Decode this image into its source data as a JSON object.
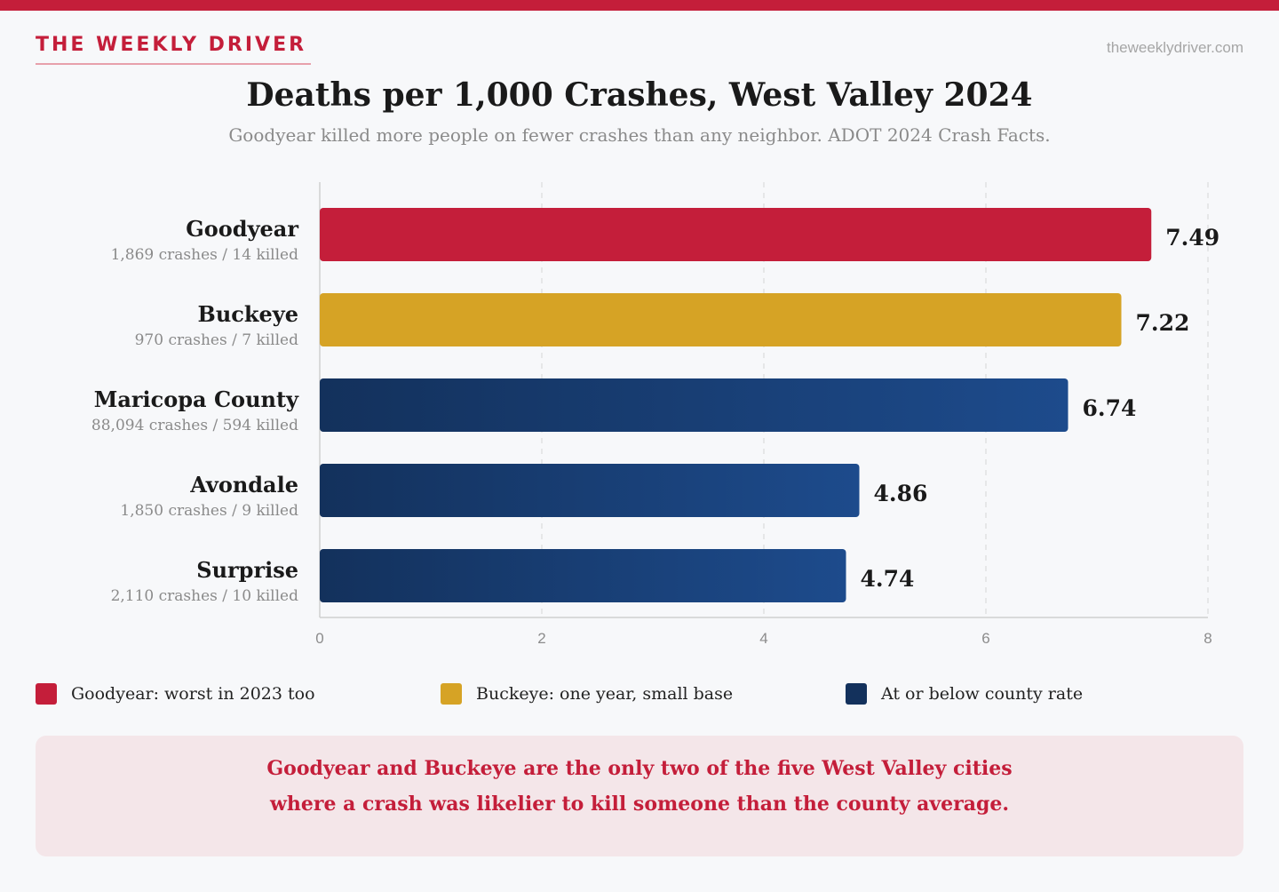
{
  "brand": {
    "name": "THE WEEKLY DRIVER",
    "site": "theweeklydriver.com"
  },
  "colors": {
    "accent": "#c41e3a",
    "gold": "#d6a325",
    "navy_dark": "#13315c",
    "navy_light": "#1d4b8c"
  },
  "chart_data": {
    "type": "bar",
    "orientation": "horizontal",
    "title": "Deaths per 1,000 Crashes, West Valley 2024",
    "subtitle": "Goodyear killed more people on fewer crashes than any neighbor. ADOT 2024 Crash Facts.",
    "categories": [
      "Goodyear",
      "Buckeye",
      "Maricopa County",
      "Avondale",
      "Surprise"
    ],
    "sublabels": [
      "1,869 crashes / 14 killed",
      "970 crashes / 7 killed",
      "88,094 crashes / 594 killed",
      "1,850 crashes / 9 killed",
      "2,110 crashes / 10 killed"
    ],
    "values": [
      7.49,
      7.22,
      6.74,
      4.86,
      4.74
    ],
    "value_labels": [
      "7.49",
      "7.22",
      "6.74",
      "4.86",
      "4.74"
    ],
    "groups": [
      "worst",
      "small-base",
      "county",
      "county",
      "county"
    ],
    "xlim": [
      0,
      8
    ],
    "xticks": [
      0,
      2,
      4,
      6,
      8
    ],
    "grid": true
  },
  "legend": [
    {
      "label": "Goodyear: worst in 2023 too",
      "color": "#c41e3a"
    },
    {
      "label": "Buckeye: one year, small base",
      "color": "#d6a325"
    },
    {
      "label": "At or below county rate",
      "color": "#13315c"
    }
  ],
  "callout": {
    "line1": "Goodyear and Buckeye are the only two of the five West Valley cities",
    "line2": "where a crash was likelier to kill someone than the county average."
  }
}
